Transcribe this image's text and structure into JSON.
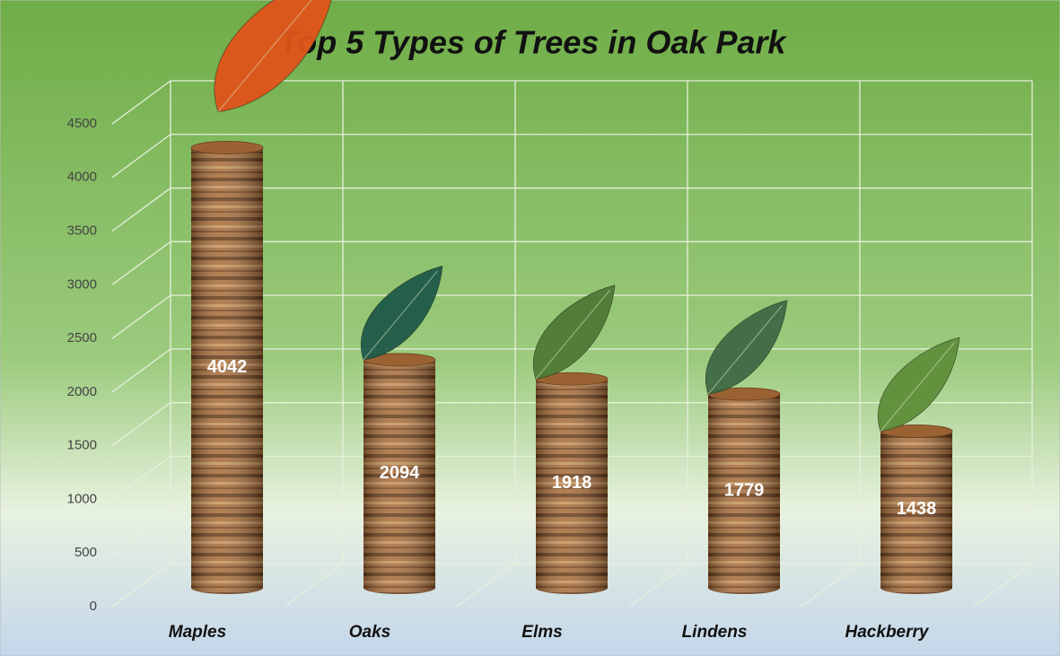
{
  "chart_data": {
    "type": "bar",
    "title": "Top 5 Types of Trees in Oak Park",
    "categories": [
      "Maples",
      "Oaks",
      "Elms",
      "Lindens",
      "Hackberry"
    ],
    "values": [
      4042,
      2094,
      1918,
      1779,
      1438
    ],
    "color": "#8a5a2e",
    "ylim": [
      0,
      4500
    ],
    "yticks": [
      0,
      500,
      1000,
      1500,
      2000,
      2500,
      3000,
      3500,
      4000,
      4500
    ],
    "grid": true
  }
}
